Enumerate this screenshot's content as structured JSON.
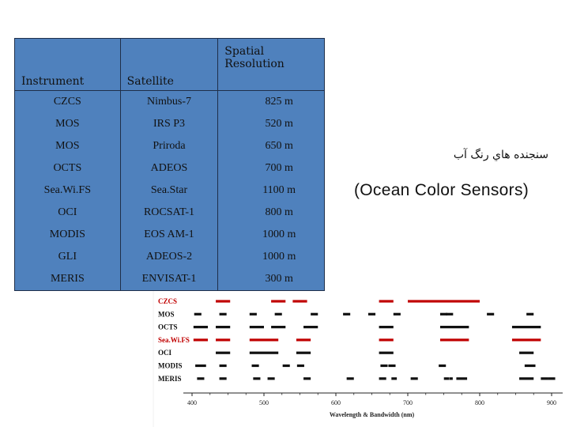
{
  "table": {
    "headers": [
      "Instrument",
      "Satellite",
      "Spatial Resolution"
    ],
    "rows": [
      [
        "CZCS",
        "Nimbus-7",
        "825 m"
      ],
      [
        "MOS",
        "IRS P3",
        "520 m"
      ],
      [
        "MOS",
        "Priroda",
        "650 m"
      ],
      [
        "OCTS",
        "ADEOS",
        "700 m"
      ],
      [
        "Sea.Wi.FS",
        "Sea.Star",
        "1100 m"
      ],
      [
        "OCI",
        "ROCSAT-1",
        "800 m"
      ],
      [
        "MODIS",
        "EOS AM-1",
        "1000 m"
      ],
      [
        "GLI",
        "ADEOS-2",
        "1000 m"
      ],
      [
        "MERIS",
        "ENVISAT-1",
        "300 m"
      ]
    ]
  },
  "titles": {
    "persian": "سنجنده هاي رنگ آب",
    "english": "(Ocean Color Sensors)"
  },
  "colors": {
    "table_fill": "#4f81bd",
    "highlight": "#c00000",
    "bands": "#111111"
  },
  "chart_data": {
    "type": "bar",
    "xlabel": "Wavelength & Bandwidth (nm)",
    "xlim": [
      400,
      900
    ],
    "xticks": [
      400,
      500,
      600,
      700,
      800,
      900
    ],
    "rows": [
      {
        "name": "CZCS",
        "highlight": true,
        "bands": [
          [
            443,
            20
          ],
          [
            520,
            20
          ],
          [
            550,
            20
          ],
          [
            670,
            20
          ],
          [
            750,
            100
          ]
        ]
      },
      {
        "name": "MOS",
        "highlight": false,
        "bands": [
          [
            408,
            10
          ],
          [
            443,
            10
          ],
          [
            485,
            10
          ],
          [
            520,
            10
          ],
          [
            570,
            10
          ],
          [
            615,
            10
          ],
          [
            650,
            10
          ],
          [
            685,
            10
          ],
          [
            750,
            10
          ],
          [
            758,
            10
          ],
          [
            815,
            10
          ],
          [
            870,
            10
          ]
        ]
      },
      {
        "name": "OCTS",
        "highlight": false,
        "bands": [
          [
            412,
            20
          ],
          [
            443,
            20
          ],
          [
            490,
            20
          ],
          [
            520,
            20
          ],
          [
            565,
            20
          ],
          [
            670,
            20
          ],
          [
            765,
            40
          ],
          [
            865,
            40
          ]
        ]
      },
      {
        "name": "Sea.Wi.FS",
        "highlight": true,
        "bands": [
          [
            412,
            20
          ],
          [
            443,
            20
          ],
          [
            490,
            20
          ],
          [
            510,
            20
          ],
          [
            555,
            20
          ],
          [
            670,
            20
          ],
          [
            765,
            40
          ],
          [
            865,
            40
          ]
        ]
      },
      {
        "name": "OCI",
        "highlight": false,
        "bands": [
          [
            443,
            20
          ],
          [
            490,
            20
          ],
          [
            510,
            20
          ],
          [
            555,
            20
          ],
          [
            670,
            20
          ],
          [
            865,
            20
          ]
        ]
      },
      {
        "name": "MODIS",
        "highlight": false,
        "bands": [
          [
            412,
            15
          ],
          [
            443,
            10
          ],
          [
            488,
            10
          ],
          [
            531,
            10
          ],
          [
            551,
            10
          ],
          [
            667,
            10
          ],
          [
            678,
            10
          ],
          [
            748,
            10
          ],
          [
            870,
            15
          ]
        ]
      },
      {
        "name": "MERIS",
        "highlight": false,
        "bands": [
          [
            412,
            10
          ],
          [
            443,
            10
          ],
          [
            490,
            10
          ],
          [
            510,
            10
          ],
          [
            560,
            10
          ],
          [
            620,
            10
          ],
          [
            665,
            10
          ],
          [
            681,
            7.5
          ],
          [
            709,
            10
          ],
          [
            754,
            7.5
          ],
          [
            760,
            3.75
          ],
          [
            775,
            15
          ],
          [
            865,
            20
          ],
          [
            890,
            10
          ],
          [
            900,
            10
          ]
        ]
      }
    ]
  }
}
